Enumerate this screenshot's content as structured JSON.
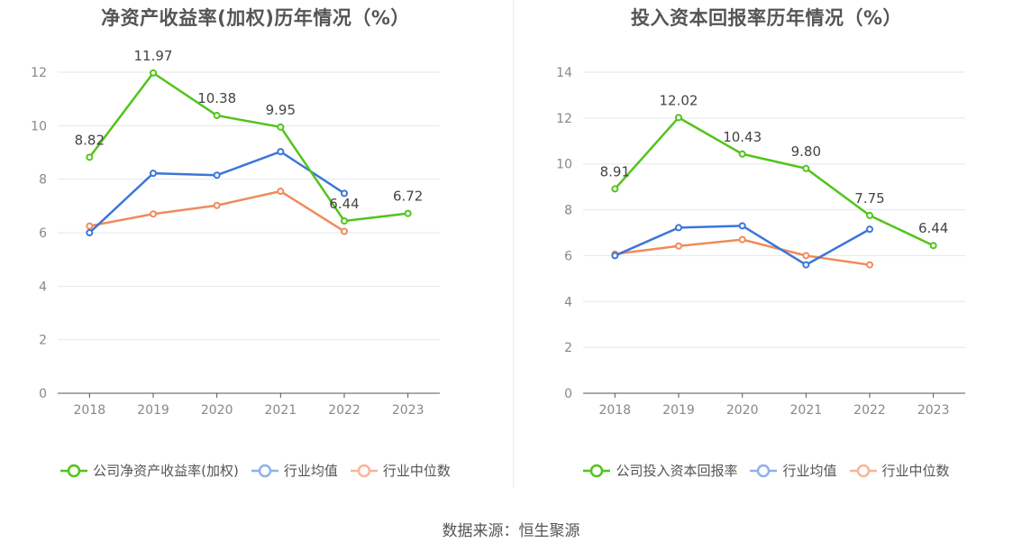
{
  "source": "数据来源：恒生聚源",
  "chart_data": [
    {
      "type": "line",
      "title": "净资产收益率(加权)历年情况（%）",
      "categories": [
        "2018",
        "2019",
        "2020",
        "2021",
        "2022",
        "2023"
      ],
      "ylim": [
        0,
        12
      ],
      "yticks": [
        0,
        2,
        4,
        6,
        8,
        10,
        12
      ],
      "grid": true,
      "legend_position": "bottom",
      "series": [
        {
          "name": "公司净资产收益率(加权)",
          "color": "#52c41a",
          "values": [
            8.82,
            11.97,
            10.38,
            9.95,
            6.44,
            6.72
          ],
          "labels": [
            "8.82",
            "11.97",
            "10.38",
            "9.95",
            "6.44",
            "6.72"
          ]
        },
        {
          "name": "行业均值",
          "color": "#3a76d8",
          "values": [
            6.0,
            8.22,
            8.15,
            9.03,
            7.47,
            null
          ]
        },
        {
          "name": "行业中位数",
          "color": "#f08a5d",
          "values": [
            6.25,
            6.7,
            7.02,
            7.55,
            6.05,
            null
          ]
        }
      ]
    },
    {
      "type": "line",
      "title": "投入资本回报率历年情况（%）",
      "categories": [
        "2018",
        "2019",
        "2020",
        "2021",
        "2022",
        "2023"
      ],
      "ylim": [
        0,
        14
      ],
      "yticks": [
        0,
        2,
        4,
        6,
        8,
        10,
        12,
        14
      ],
      "grid": true,
      "legend_position": "bottom",
      "series": [
        {
          "name": "公司投入资本回报率",
          "color": "#52c41a",
          "values": [
            8.91,
            12.02,
            10.43,
            9.8,
            7.75,
            6.44
          ],
          "labels": [
            "8.91",
            "12.02",
            "10.43",
            "9.80",
            "7.75",
            "6.44"
          ]
        },
        {
          "name": "行业均值",
          "color": "#3a76d8",
          "values": [
            6.0,
            7.22,
            7.3,
            5.6,
            7.15,
            null
          ]
        },
        {
          "name": "行业中位数",
          "color": "#f08a5d",
          "values": [
            6.07,
            6.42,
            6.7,
            6.0,
            5.6,
            null
          ]
        }
      ]
    }
  ]
}
